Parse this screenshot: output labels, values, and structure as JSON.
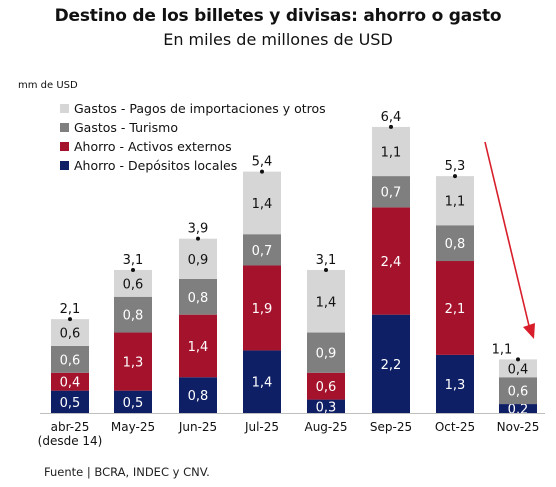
{
  "chart_data": {
    "type": "bar",
    "stacked": true,
    "title": "Destino de los billetes y divisas: ahorro o gasto",
    "subtitle": "En miles de millones de USD",
    "ylabel": "mm de USD",
    "categories": [
      "abr-25\n(desde 14)",
      "May-25",
      "Jun-25",
      "Jul-25",
      "Aug-25",
      "Sep-25",
      "Oct-25",
      "Nov-25"
    ],
    "series": [
      {
        "name": "Ahorro - Depósitos locales",
        "color": "#0f1f66",
        "values": [
          0.5,
          0.5,
          0.8,
          1.4,
          0.3,
          2.2,
          1.3,
          0.2
        ],
        "labels": [
          "0,5",
          "0,5",
          "0,8",
          "1,4",
          "0,3",
          "2,2",
          "1,3",
          "0,2"
        ]
      },
      {
        "name": "Ahorro - Activos externos",
        "color": "#a4122c",
        "values": [
          0.4,
          1.3,
          1.4,
          1.9,
          0.6,
          2.4,
          2.1,
          0.0
        ],
        "labels": [
          "0,4",
          "1,3",
          "1,4",
          "1,9",
          "0,6",
          "2,4",
          "2,1",
          ""
        ]
      },
      {
        "name": "Gastos - Turismo",
        "color": "#7f7f7f",
        "values": [
          0.6,
          0.8,
          0.8,
          0.7,
          0.9,
          0.7,
          0.8,
          0.6
        ],
        "labels": [
          "0,6",
          "0,8",
          "0,8",
          "0,7",
          "0,9",
          "0,7",
          "0,8",
          "0,6"
        ]
      },
      {
        "name": "Gastos - Pagos de importaciones y otros",
        "color": "#d6d6d6",
        "values": [
          0.6,
          0.6,
          0.9,
          1.4,
          1.4,
          1.1,
          1.1,
          0.4
        ],
        "labels": [
          "0,6",
          "0,6",
          "0,9",
          "1,4",
          "1,4",
          "1,1",
          "1,1",
          "0,4"
        ]
      }
    ],
    "totals": [
      2.1,
      3.1,
      3.9,
      5.4,
      3.1,
      6.4,
      5.3,
      1.1
    ],
    "total_labels": [
      "2,1",
      "3,1",
      "3,9",
      "5,4",
      "3,1",
      "6,4",
      "5,3",
      "1,1"
    ],
    "ylim": [
      0,
      7
    ],
    "grid": false,
    "legend_position": "top-left",
    "legend_order": [
      3,
      2,
      1,
      0
    ],
    "annotation": "red arrow pointing down toward Nov-25"
  },
  "source": "Fuente | BCRA, INDEC y CNV."
}
